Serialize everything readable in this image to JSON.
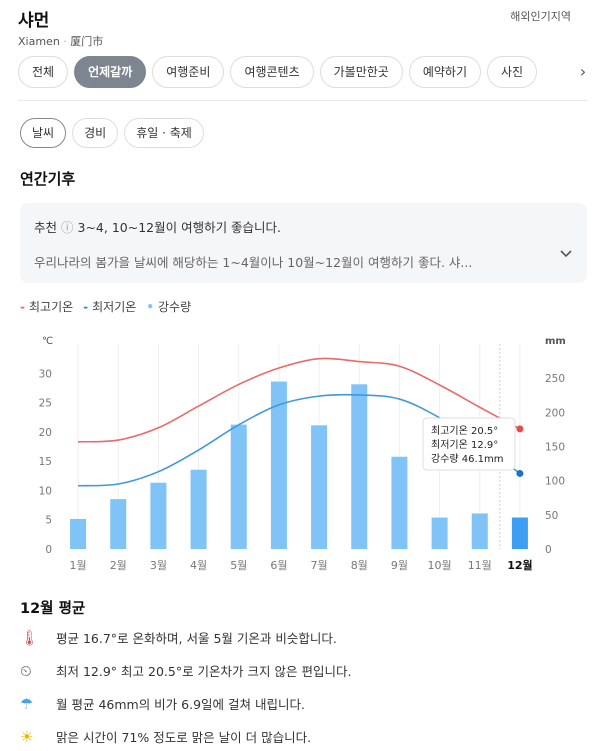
{
  "header": {
    "title": "샤먼",
    "subtitle_en": "Xiamen",
    "subtitle_sep": "·",
    "subtitle_local": "厦门市",
    "region_link": "해외인기지역"
  },
  "tabs": [
    {
      "label": "전체",
      "active": false
    },
    {
      "label": "언제갈까",
      "active": true
    },
    {
      "label": "여행준비",
      "active": false
    },
    {
      "label": "여행콘텐츠",
      "active": false
    },
    {
      "label": "가볼만한곳",
      "active": false
    },
    {
      "label": "예약하기",
      "active": false
    },
    {
      "label": "사진",
      "active": false
    }
  ],
  "tab_next_icon": "chevron-right-icon",
  "subtabs": [
    {
      "label": "날씨",
      "active": true
    },
    {
      "label": "경비",
      "active": false
    },
    {
      "label": "휴일 · 축제",
      "active": false
    }
  ],
  "section_title": "연간기후",
  "recommendation": {
    "label": "추천",
    "info_icon": "ⓘ",
    "text": "3~4, 10~12월이 여행하기 좋습니다.",
    "detail": "우리나라의 봄가을 날씨에 해당하는 1~4월이나 10월~12월이 여행하기 좋다. 샤...",
    "expand_icon": "chevron-down-icon"
  },
  "legend": [
    {
      "label": "최고기온",
      "color": "#e86a6a",
      "mark": "-"
    },
    {
      "label": "최저기온",
      "color": "#2a8fb5",
      "mark": "-"
    },
    {
      "label": "강수량",
      "color": "#7fc3f7",
      "mark": "•"
    }
  ],
  "chart_data": {
    "type": "bar",
    "left_unit": "℃",
    "right_unit": "mm",
    "categories": [
      "1월",
      "2월",
      "3월",
      "4월",
      "5월",
      "6월",
      "7월",
      "8월",
      "9월",
      "10월",
      "11월",
      "12월"
    ],
    "selected_index": 11,
    "ylim_left": [
      0,
      35
    ],
    "yticks_left": [
      0,
      5,
      10,
      15,
      20,
      25,
      30
    ],
    "ylim_right": [
      0,
      300
    ],
    "yticks_right": [
      0,
      50,
      100,
      150,
      200,
      250
    ],
    "series": [
      {
        "name": "강수량",
        "kind": "bar",
        "axis": "right",
        "values": [
          44,
          73,
          97,
          116,
          182,
          245,
          181,
          241,
          135,
          46,
          52,
          46.1
        ]
      },
      {
        "name": "최고기온",
        "kind": "line",
        "axis": "left",
        "values": [
          18.3,
          18.6,
          20.7,
          24.4,
          28.1,
          30.9,
          32.5,
          32.0,
          31.2,
          28.0,
          24.2,
          20.5
        ]
      },
      {
        "name": "최저기온",
        "kind": "line",
        "axis": "left",
        "values": [
          10.8,
          11.1,
          13.2,
          16.9,
          21.2,
          24.6,
          26.1,
          26.3,
          25.6,
          22.4,
          17.9,
          12.9
        ]
      }
    ],
    "tooltip": {
      "high": "최고기온 20.5°",
      "low": "최저기온 12.9°",
      "rain": "강수량 46.1mm"
    },
    "colors": {
      "bar": "#7fc3f7",
      "bar_selected": "#3d9ff2",
      "high": "#e86a6a",
      "low": "#3f9ad6",
      "grid": "#eeeeee"
    }
  },
  "average": {
    "title": "12월 평균",
    "facts": [
      {
        "icon": "thermometer-icon",
        "glyph": "🌡",
        "text": "평균 16.7°로 온화하며, 서울 5월 기온과 비슷합니다."
      },
      {
        "icon": "clock-icon",
        "glyph": "⏲",
        "text": "최저 12.9° 최고 20.5°로 기온차가 크지 않은 편입니다."
      },
      {
        "icon": "rain-cloud-icon",
        "glyph": "☂",
        "text": "월 평균 46mm의 비가 6.9일에 걸쳐 내립니다."
      },
      {
        "icon": "sun-icon",
        "glyph": "☀",
        "text": "맑은 시간이 71% 정도로 맑은 날이 더 많습니다."
      }
    ]
  }
}
